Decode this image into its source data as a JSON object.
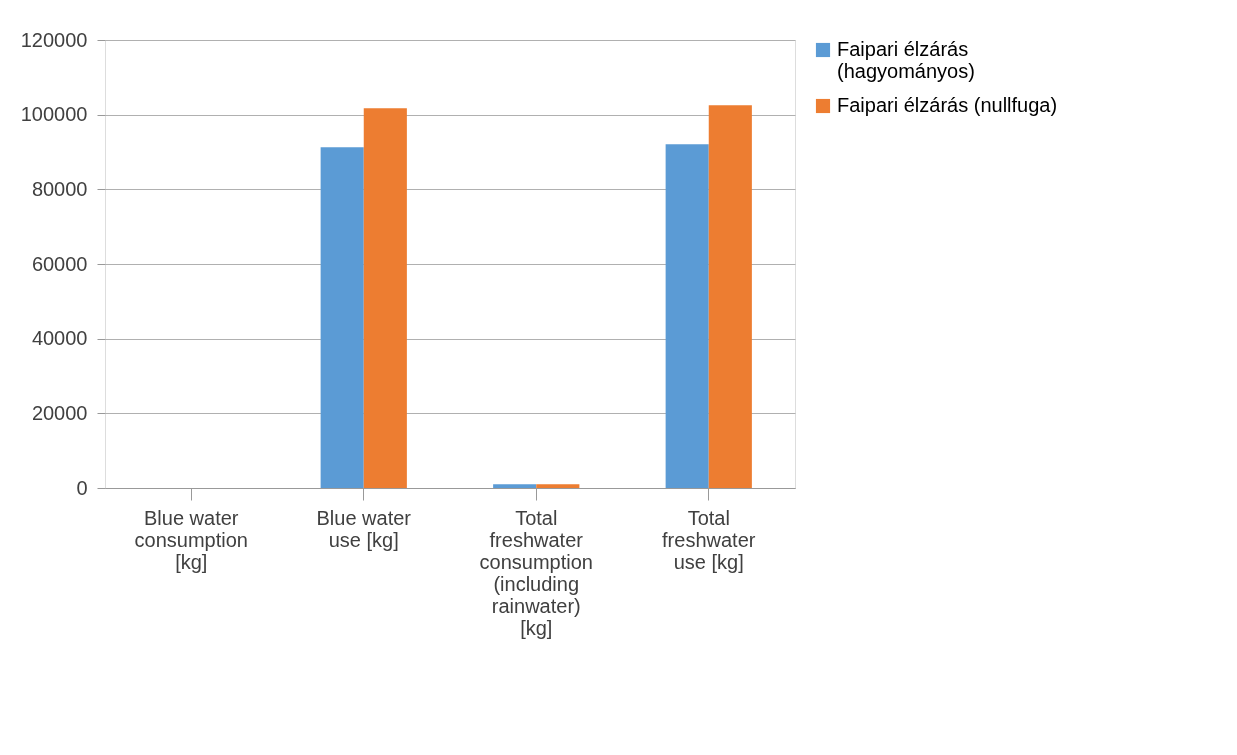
{
  "chart_data": {
    "type": "bar",
    "categories": [
      "Blue water consumption [kg]",
      "Blue water use [kg]",
      "Total freshwater consumption (including rainwater) [kg]",
      "Total freshwater use [kg]"
    ],
    "series": [
      {
        "name": "Faipari élzárás (hagyományos)",
        "color": "#5b9bd5",
        "values": [
          0,
          91300,
          1000,
          92100
        ]
      },
      {
        "name": "Faipari élzárás (nullfuga)",
        "color": "#ed7d31",
        "values": [
          0,
          101700,
          1000,
          102500
        ]
      }
    ],
    "ylim": [
      0,
      120000
    ],
    "yticks": [
      0,
      20000,
      40000,
      60000,
      80000,
      100000,
      120000
    ],
    "grid": "y",
    "legend": "right"
  }
}
